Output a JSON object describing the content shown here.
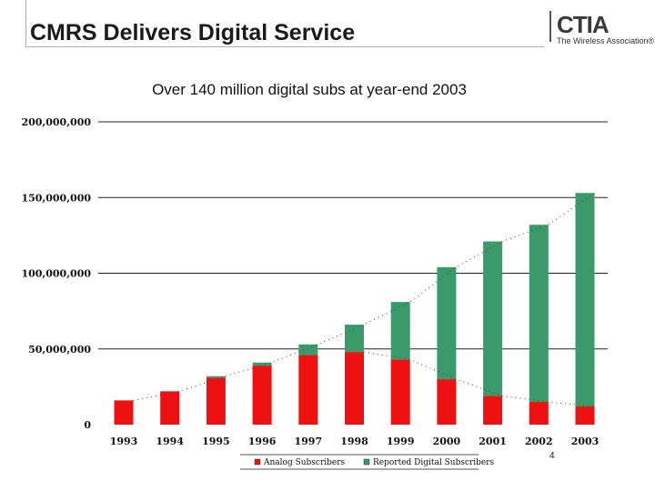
{
  "slide": {
    "title": "CMRS Delivers Digital Service",
    "subtitle": "Over 140 million digital subs at year-end 2003",
    "page_number": "4"
  },
  "logo": {
    "name": "CTIA",
    "tagline": "The Wireless Association®"
  },
  "colors": {
    "analog": "#ee1111",
    "digital": "#3a9a6a",
    "grid": "#222222"
  },
  "chart_data": {
    "type": "bar",
    "stacked": true,
    "title": "Over 140 million digital subs at year-end 2003",
    "xlabel": "",
    "ylabel": "",
    "ylim": [
      0,
      200000000
    ],
    "yticks": [
      0,
      50000000,
      100000000,
      150000000,
      200000000
    ],
    "ytick_labels": [
      "0",
      "50,000,000",
      "100,000,000",
      "150,000,000",
      "200,000,000"
    ],
    "categories": [
      "1993",
      "1994",
      "1995",
      "1996",
      "1997",
      "1998",
      "1999",
      "2000",
      "2001",
      "2002",
      "2003"
    ],
    "series": [
      {
        "name": "Analog Subscribers",
        "values": [
          16000000,
          22000000,
          31000000,
          39000000,
          46000000,
          48000000,
          43000000,
          30000000,
          19000000,
          15000000,
          12000000
        ]
      },
      {
        "name": "Reported Digital Subscribers",
        "values": [
          0,
          0,
          1000000,
          2000000,
          7000000,
          18000000,
          38000000,
          74000000,
          102000000,
          117000000,
          141000000
        ]
      }
    ],
    "legend": [
      "Analog Subscribers",
      "Reported Digital Subscribers"
    ],
    "legend_position": "bottom"
  }
}
